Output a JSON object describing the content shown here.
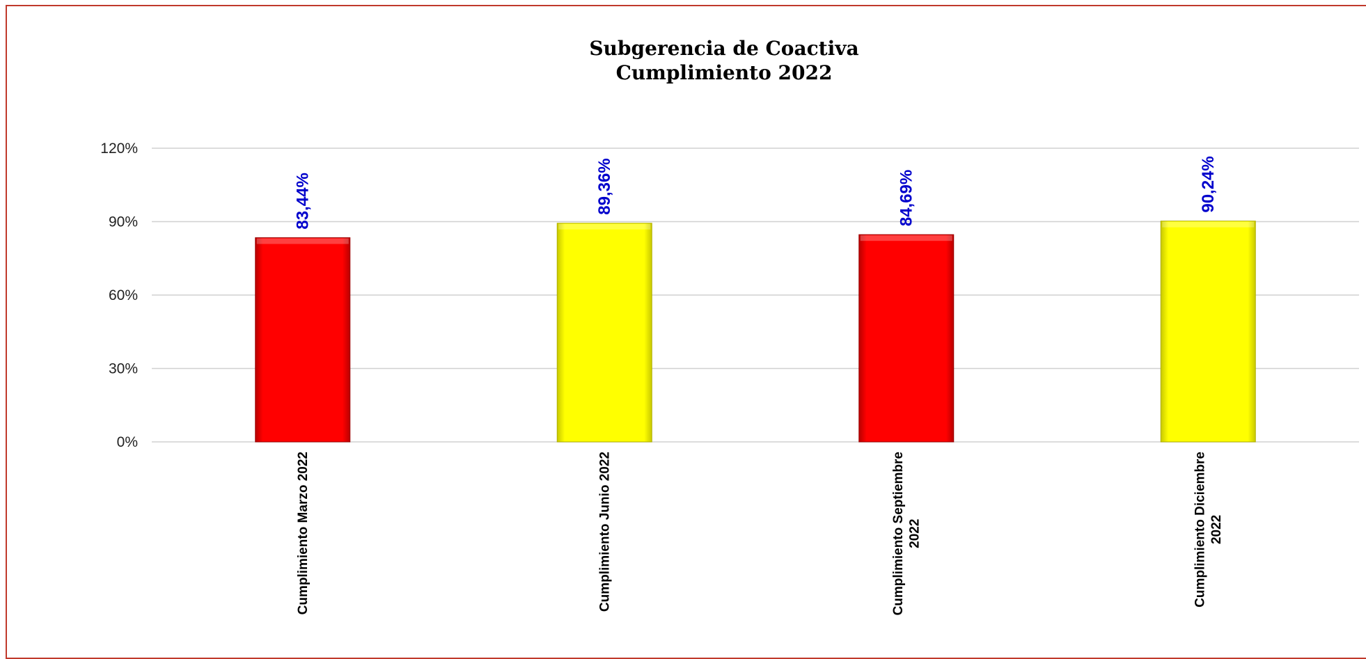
{
  "chart_data": {
    "type": "bar",
    "title": [
      "Subgerencia de Coactiva",
      "Cumplimiento 2022"
    ],
    "categories": [
      [
        "Cumplimiento Marzo 2022"
      ],
      [
        "Cumplimiento Junio 2022"
      ],
      [
        "Cumplimiento Septiembre",
        "2022"
      ],
      [
        "Cumplimiento Diciembre",
        "2022"
      ]
    ],
    "values": [
      83.44,
      89.36,
      84.69,
      90.24
    ],
    "data_labels": [
      "83,44%",
      "89,36%",
      "84,69%",
      "90,24%"
    ],
    "bar_colors": [
      "#ff0000",
      "#ffff00",
      "#ff0000",
      "#ffff00"
    ],
    "ylim": [
      0,
      120
    ],
    "yticks": [
      0,
      30,
      60,
      90,
      120
    ],
    "ytick_labels": [
      "0%",
      "30%",
      "60%",
      "90%",
      "120%"
    ],
    "grid": true,
    "legend": "none",
    "label_color": "#0000cc",
    "frame_color": "#c0392b"
  }
}
